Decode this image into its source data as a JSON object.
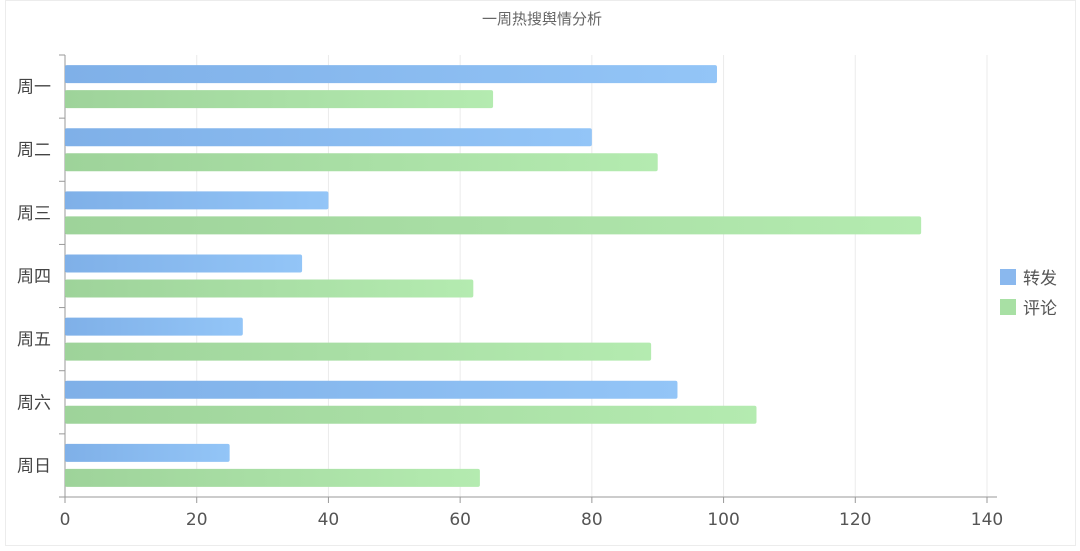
{
  "chart_data": {
    "type": "bar",
    "orientation": "horizontal",
    "title": "一周热搜舆情分析",
    "categories": [
      "周一",
      "周二",
      "周三",
      "周四",
      "周五",
      "周六",
      "周日"
    ],
    "series": [
      {
        "name": "转发",
        "values": [
          99,
          80,
          40,
          36,
          27,
          93,
          25
        ],
        "color": "#8ab8ee"
      },
      {
        "name": "评论",
        "values": [
          65,
          90,
          130,
          62,
          89,
          105,
          63
        ],
        "color": "#a8e0a4"
      }
    ],
    "xlim": [
      0,
      140
    ],
    "x_ticks": [
      "0",
      "20",
      "40",
      "60",
      "80",
      "100",
      "120",
      "140"
    ],
    "grid": "vertical",
    "legend_position": "right"
  }
}
